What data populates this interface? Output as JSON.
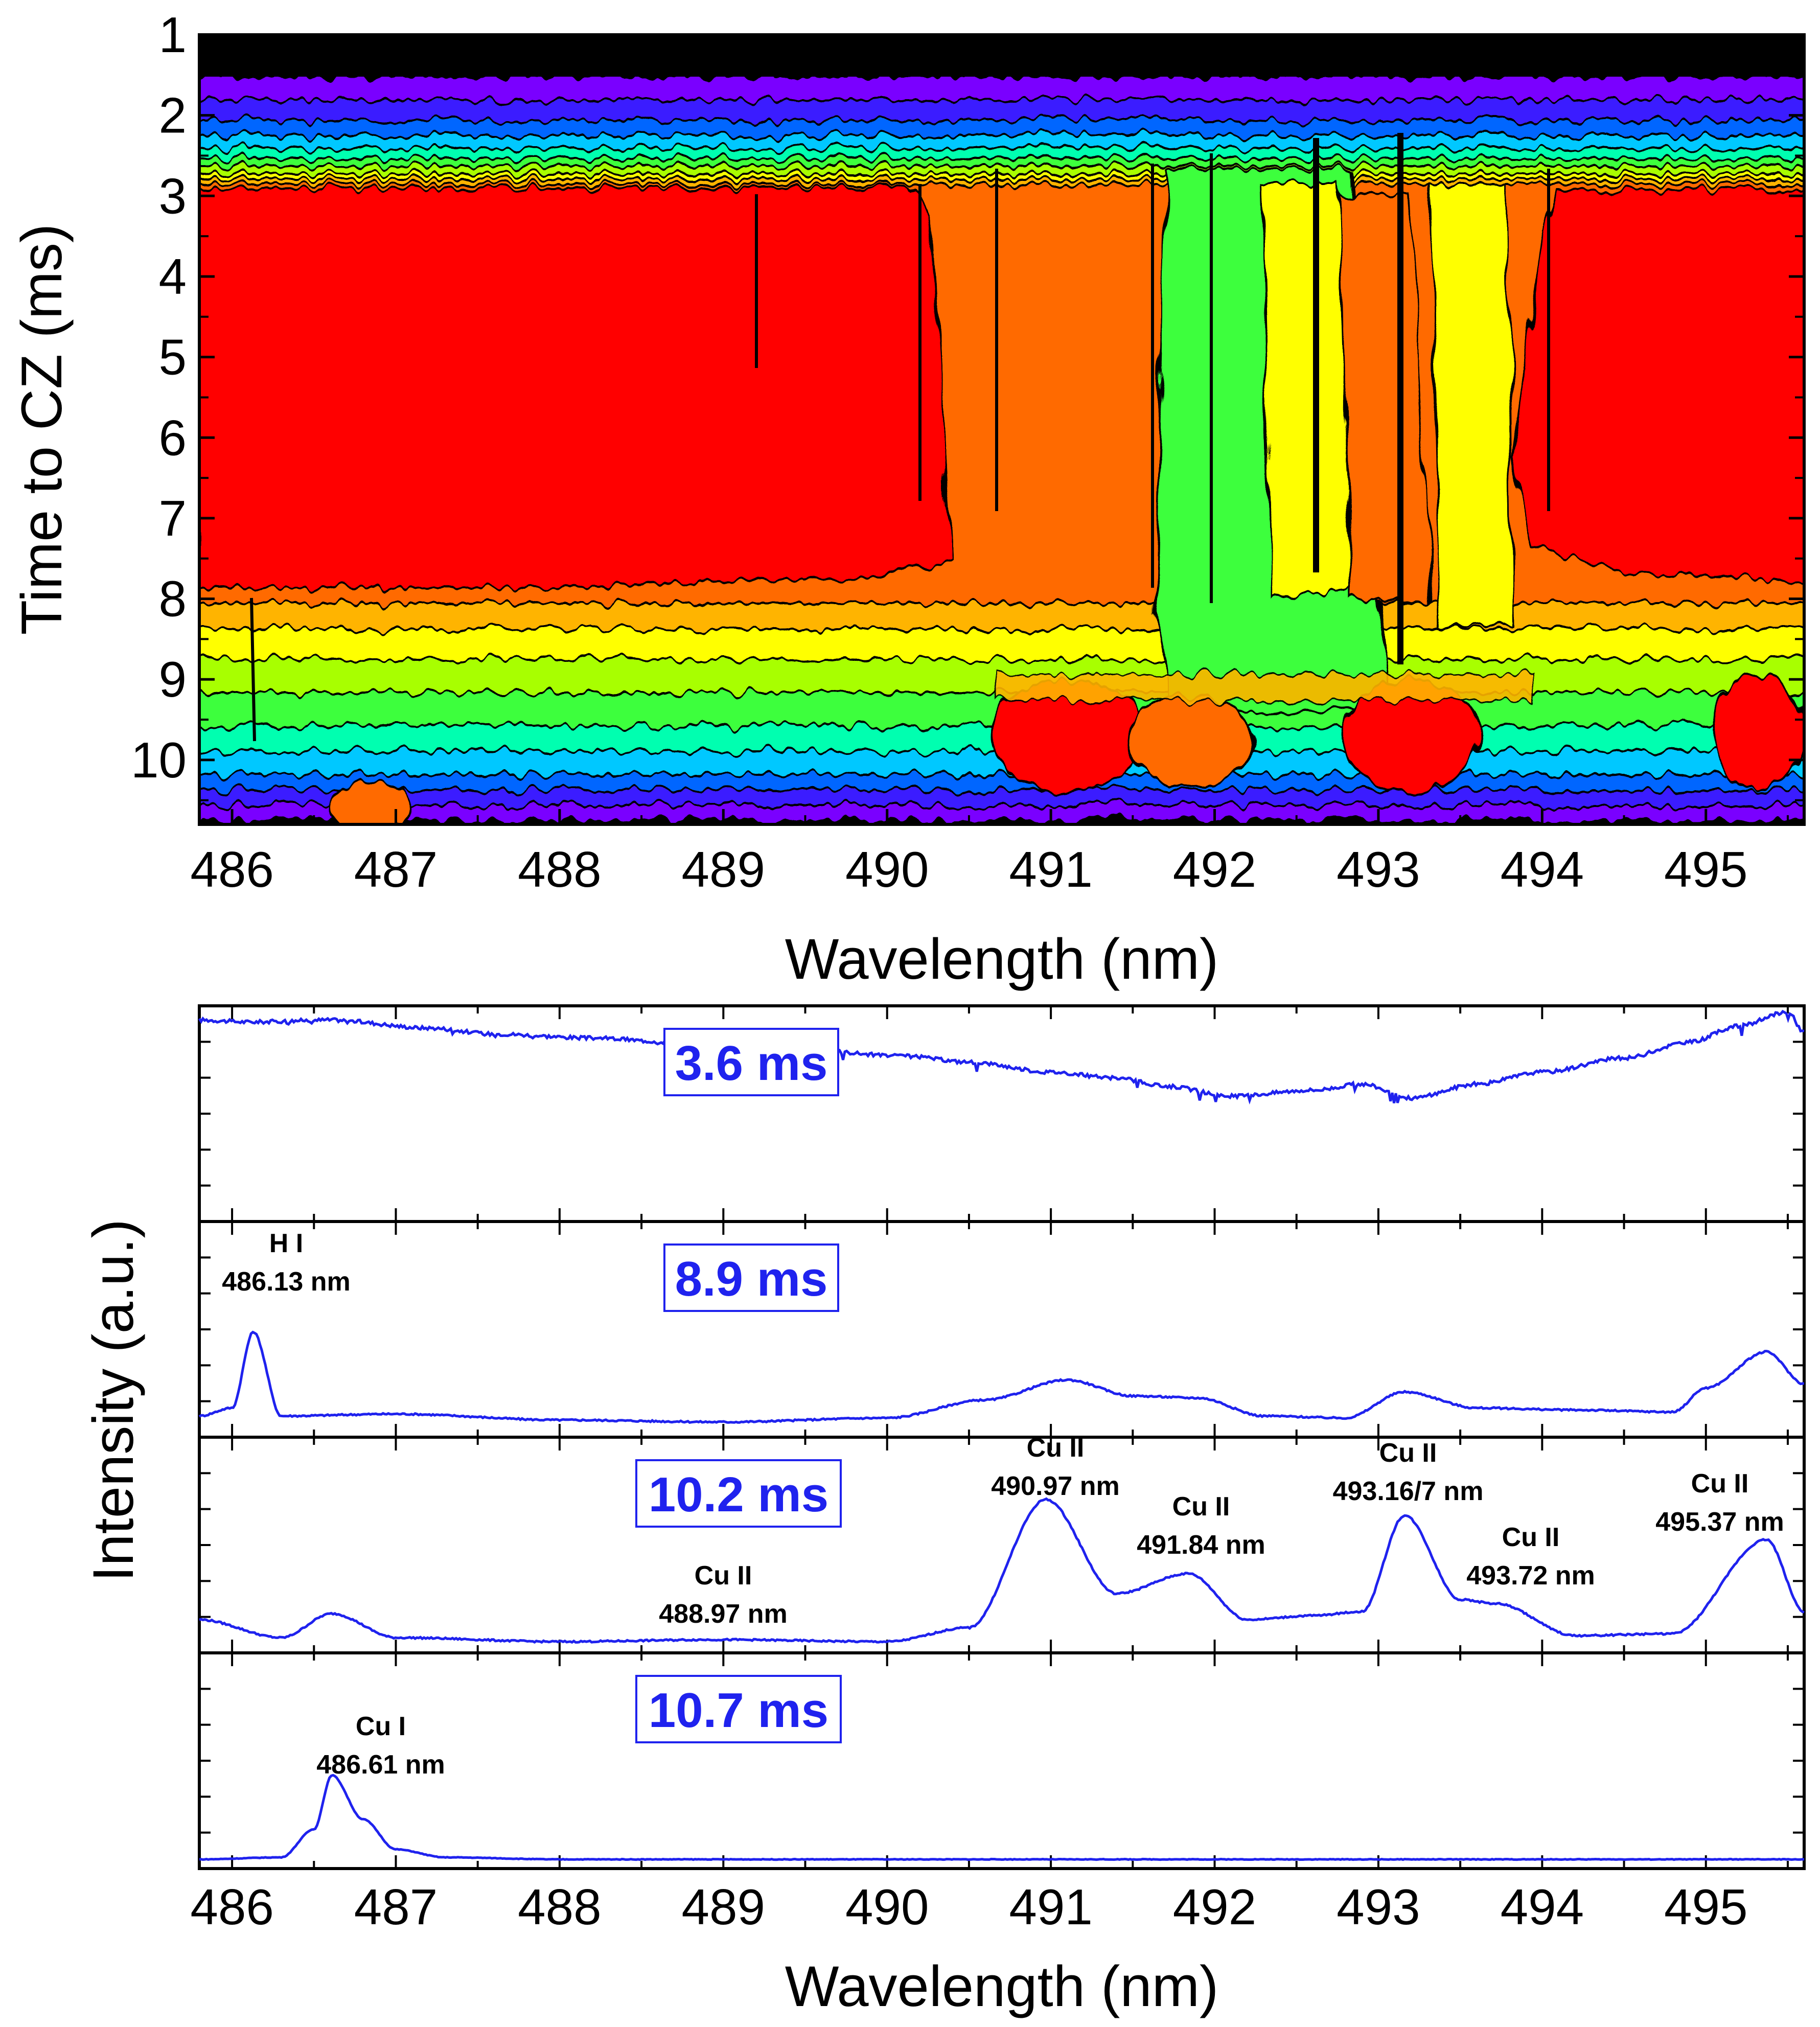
{
  "figure": {
    "contour": {
      "xlabel": "Wavelength (nm)",
      "ylabel": "Time to CZ (ms)",
      "xlim": [
        485.8,
        495.6
      ],
      "ylim": [
        1,
        10.8
      ],
      "xticks": [
        "486",
        "487",
        "488",
        "489",
        "490",
        "491",
        "492",
        "493",
        "494",
        "495"
      ],
      "yticks": [
        "1",
        "2",
        "3",
        "4",
        "5",
        "6",
        "7",
        "8",
        "9",
        "10"
      ]
    },
    "spectra": {
      "xlabel": "Wavelength (nm)",
      "ylabel": "Intensity (a.u.)",
      "xticks": [
        "486",
        "487",
        "488",
        "489",
        "490",
        "491",
        "492",
        "493",
        "494",
        "495"
      ],
      "panels": [
        {
          "time_label": "3.6 ms",
          "annotations": []
        },
        {
          "time_label": "8.9 ms",
          "annotations": [
            {
              "line1": "H I",
              "line2": "486.13 nm"
            }
          ]
        },
        {
          "time_label": "10.2 ms",
          "annotations": [
            {
              "line1": "Cu II",
              "line2": "490.97 nm"
            },
            {
              "line1": "Cu II",
              "line2": "491.84 nm"
            },
            {
              "line1": "Cu II",
              "line2": "493.16/7 nm"
            },
            {
              "line1": "Cu II",
              "line2": "493.72 nm"
            },
            {
              "line1": "Cu II",
              "line2": "495.37 nm"
            },
            {
              "line1": "Cu II",
              "line2": "488.97 nm"
            }
          ]
        },
        {
          "time_label": "10.7 ms",
          "annotations": [
            {
              "line1": "Cu I",
              "line2": "486.61 nm"
            }
          ]
        }
      ]
    },
    "colors": {
      "curve": "#1f22ee",
      "label_box": "#1f22ee",
      "contour_lines": "#000000"
    }
  },
  "chart_data": [
    {
      "type": "heatmap",
      "title": "",
      "xlabel": "Wavelength (nm)",
      "ylabel": "Time to CZ (ms)",
      "xlim": [
        485.8,
        495.6
      ],
      "ylim": [
        1,
        10.8
      ],
      "colormap": [
        "#000000",
        "#7a00ff",
        "#3b1cff",
        "#0066ff",
        "#00c8ff",
        "#00ffb0",
        "#3cff3c",
        "#a8ff00",
        "#ffff00",
        "#ffb400",
        "#ff6a00",
        "#ff0000"
      ],
      "description_points": {
        "time_ms": [
          1.5,
          2.5,
          3,
          5,
          7,
          8,
          9,
          10,
          10.6
        ],
        "note": "intensity rises from ~1.6 ms, saturates (red) 3-8 ms outside 490.5-493.8 nm, decays after 8 ms"
      }
    },
    {
      "type": "line",
      "series": [
        {
          "name": "3.6 ms",
          "x": [
            485.8,
            486.1,
            486.6,
            487.2,
            487.6,
            488.2,
            488.7,
            489.0,
            489.5,
            490.1,
            490.5,
            491.0,
            491.4,
            491.7,
            492.1,
            492.6,
            492.9,
            493.2,
            493.6,
            494.0,
            494.5,
            494.9,
            495.2,
            495.5,
            495.6
          ],
          "y": [
            0.96,
            0.95,
            0.96,
            0.92,
            0.89,
            0.87,
            0.85,
            0.83,
            0.81,
            0.78,
            0.75,
            0.7,
            0.67,
            0.63,
            0.58,
            0.61,
            0.64,
            0.57,
            0.64,
            0.7,
            0.77,
            0.85,
            0.93,
            1.0,
            0.9
          ]
        },
        {
          "name": "8.9 ms",
          "x": [
            485.8,
            486.0,
            486.13,
            486.3,
            487.0,
            488.0,
            489.0,
            490.0,
            490.6,
            491.1,
            491.5,
            491.9,
            492.3,
            492.8,
            493.16,
            493.6,
            494.2,
            494.8,
            495.0,
            495.37,
            495.6
          ],
          "y": [
            0.06,
            0.1,
            0.48,
            0.06,
            0.07,
            0.04,
            0.03,
            0.05,
            0.14,
            0.24,
            0.16,
            0.15,
            0.06,
            0.05,
            0.18,
            0.1,
            0.09,
            0.08,
            0.2,
            0.38,
            0.22
          ]
        },
        {
          "name": "10.2 ms",
          "x": [
            485.8,
            486.3,
            486.61,
            487.0,
            488.0,
            488.97,
            490.0,
            490.5,
            490.97,
            491.4,
            491.84,
            492.2,
            492.6,
            492.9,
            493.16,
            493.5,
            493.72,
            494.2,
            494.8,
            495.37,
            495.6
          ],
          "y": [
            0.12,
            0.03,
            0.15,
            0.03,
            0.01,
            0.02,
            0.01,
            0.08,
            0.72,
            0.25,
            0.35,
            0.12,
            0.14,
            0.16,
            0.64,
            0.22,
            0.2,
            0.04,
            0.05,
            0.52,
            0.16
          ]
        },
        {
          "name": "10.7 ms",
          "x": [
            485.8,
            486.3,
            486.5,
            486.61,
            486.8,
            487.0,
            487.3,
            488.0,
            490.0,
            492.0,
            494.0,
            495.6
          ],
          "y": [
            0.0,
            0.01,
            0.15,
            0.42,
            0.2,
            0.05,
            0.01,
            0.0,
            0.0,
            0.0,
            0.0,
            0.0
          ]
        }
      ],
      "xlabel": "Wavelength (nm)",
      "ylabel": "Intensity (a.u.)",
      "xlim": [
        485.8,
        495.6
      ]
    }
  ]
}
